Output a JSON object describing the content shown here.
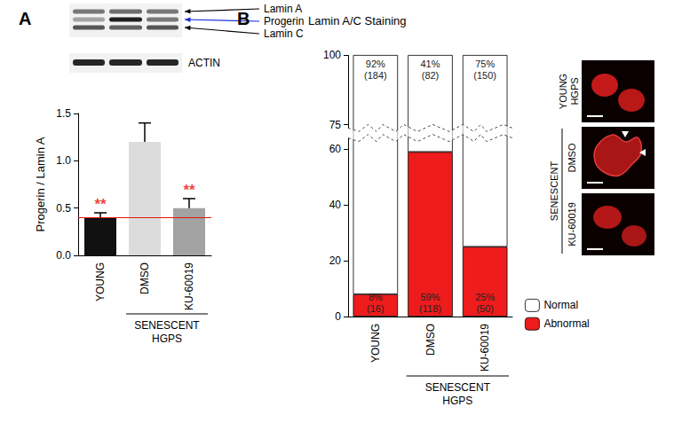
{
  "panels": [
    "A",
    "B"
  ],
  "blot": {
    "bands": [
      "Lamin A",
      "Progerin",
      "Lamin C"
    ],
    "loading_control": "ACTIN"
  },
  "micrographs": {
    "labels": [
      "YOUNG\nHGPS",
      "DMSO",
      "KU-60019"
    ],
    "group": "SENESCENT"
  },
  "chart_data": [
    {
      "type": "bar",
      "ylabel": "Progerin / Lamin A",
      "categories": [
        "YOUNG",
        "DMSO",
        "KU-60019"
      ],
      "values": [
        0.4,
        1.2,
        0.5
      ],
      "errors": [
        0.05,
        0.2,
        0.1
      ],
      "colors": [
        "#111111",
        "#dcdcdc",
        "#a3a3a3"
      ],
      "ylim": [
        0,
        1.5
      ],
      "yticks": [
        {
          "value": 0,
          "label": "0.0"
        },
        {
          "value": 0.5,
          "label": "0.5"
        },
        {
          "value": 1,
          "label": "1.0"
        },
        {
          "value": 1.5,
          "label": "1.5"
        }
      ],
      "reference_line": 0.4,
      "annotations": [
        {
          "category": "YOUNG",
          "text": "**"
        },
        {
          "category": "KU-60019",
          "text": "**"
        }
      ],
      "group_label": {
        "text": "SENESCENT\nHGPS",
        "categories": [
          "DMSO",
          "KU-60019"
        ]
      }
    },
    {
      "type": "bar",
      "title": "Lamin A/C Staining",
      "stacked": true,
      "data_labels": true,
      "legend": "lower right",
      "categories": [
        "YOUNG",
        "DMSO",
        "KU-60019"
      ],
      "series": [
        {
          "name": "Abnormal",
          "color": "#ee1c1c",
          "values": [
            8,
            59,
            25
          ],
          "value_labels": [
            "8%\n(16)",
            "59%\n(118)",
            "25%\n(50)"
          ]
        },
        {
          "name": "Normal",
          "color": "#ffffff",
          "values": [
            92,
            41,
            75
          ],
          "value_labels": [
            "92%\n(184)",
            "41%\n(82)",
            "75%\n(150)"
          ]
        }
      ],
      "ylim": [
        0,
        100
      ],
      "yticks": [
        0,
        20,
        40,
        60,
        75,
        100
      ],
      "ybreak": [
        64,
        74
      ],
      "group_label": {
        "text": "SENESCENT\nHGPS",
        "categories": [
          "DMSO",
          "KU-60019"
        ]
      }
    }
  ]
}
